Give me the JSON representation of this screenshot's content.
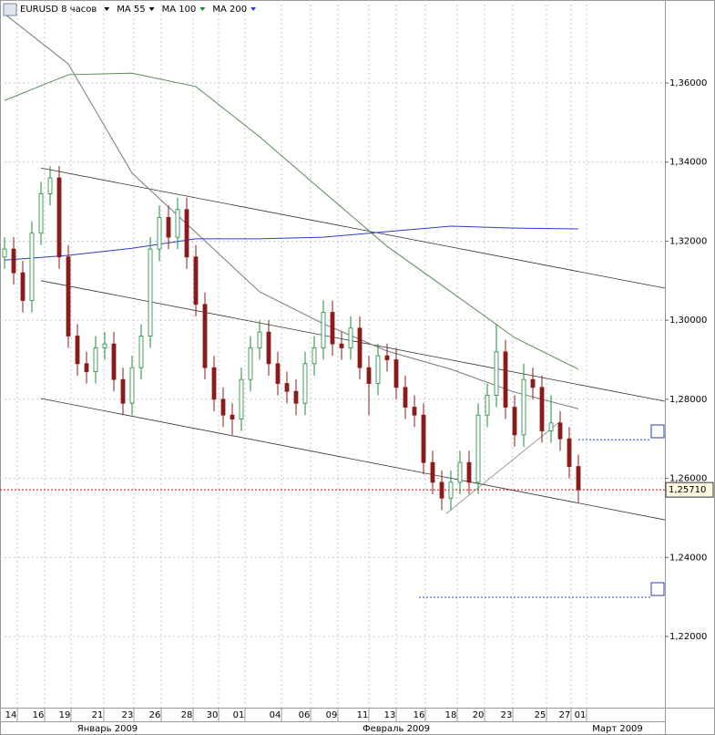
{
  "chart_data": {
    "type": "candlestick",
    "title": "EURUSD 8 часов",
    "up_color": "#1f8a3b",
    "down_color": "#8b1a1a",
    "open": [
      1.316,
      1.318,
      1.312,
      1.305,
      1.322,
      1.332,
      1.336,
      1.316,
      1.296,
      1.289,
      1.287,
      1.293,
      1.294,
      1.285,
      1.279,
      1.288,
      1.296,
      1.318,
      1.326,
      1.321,
      1.328,
      1.316,
      1.304,
      1.288,
      1.28,
      1.276,
      1.275,
      1.285,
      1.293,
      1.297,
      1.289,
      1.284,
      1.282,
      1.279,
      1.289,
      1.293,
      1.302,
      1.294,
      1.293,
      1.298,
      1.288,
      1.284,
      1.291,
      1.29,
      1.283,
      1.278,
      1.276,
      1.264,
      1.259,
      1.255,
      1.259,
      1.264,
      1.259,
      1.276,
      1.281,
      1.292,
      1.278,
      1.271,
      1.285,
      1.283,
      1.272,
      1.274,
      1.27,
      1.263
    ],
    "high": [
      1.321,
      1.321,
      1.315,
      1.325,
      1.335,
      1.339,
      1.339,
      1.319,
      1.299,
      1.292,
      1.296,
      1.297,
      1.297,
      1.288,
      1.291,
      1.299,
      1.321,
      1.329,
      1.329,
      1.331,
      1.331,
      1.319,
      1.307,
      1.291,
      1.283,
      1.279,
      1.288,
      1.296,
      1.3,
      1.3,
      1.292,
      1.287,
      1.285,
      1.292,
      1.296,
      1.305,
      1.305,
      1.297,
      1.301,
      1.301,
      1.291,
      1.294,
      1.294,
      1.293,
      1.286,
      1.281,
      1.279,
      1.267,
      1.262,
      1.262,
      1.267,
      1.267,
      1.279,
      1.284,
      1.299,
      1.295,
      1.281,
      1.289,
      1.288,
      1.286,
      1.281,
      1.277,
      1.273,
      1.266
    ],
    "low": [
      1.313,
      1.309,
      1.302,
      1.302,
      1.319,
      1.329,
      1.313,
      1.293,
      1.286,
      1.284,
      1.284,
      1.29,
      1.282,
      1.276,
      1.276,
      1.285,
      1.293,
      1.315,
      1.318,
      1.318,
      1.313,
      1.301,
      1.285,
      1.277,
      1.273,
      1.271,
      1.272,
      1.282,
      1.29,
      1.286,
      1.281,
      1.279,
      1.276,
      1.276,
      1.286,
      1.29,
      1.291,
      1.29,
      1.29,
      1.285,
      1.276,
      1.281,
      1.287,
      1.28,
      1.275,
      1.273,
      1.261,
      1.256,
      1.252,
      1.252,
      1.256,
      1.256,
      1.256,
      1.273,
      1.278,
      1.275,
      1.268,
      1.268,
      1.28,
      1.269,
      1.269,
      1.267,
      1.26,
      1.254
    ],
    "close": [
      1.318,
      1.312,
      1.305,
      1.322,
      1.332,
      1.336,
      1.316,
      1.296,
      1.289,
      1.287,
      1.293,
      1.294,
      1.285,
      1.279,
      1.288,
      1.296,
      1.318,
      1.326,
      1.321,
      1.328,
      1.316,
      1.304,
      1.288,
      1.28,
      1.276,
      1.275,
      1.285,
      1.293,
      1.297,
      1.289,
      1.284,
      1.282,
      1.279,
      1.289,
      1.293,
      1.302,
      1.294,
      1.293,
      1.298,
      1.288,
      1.284,
      1.291,
      1.29,
      1.283,
      1.278,
      1.276,
      1.264,
      1.259,
      1.255,
      1.259,
      1.264,
      1.259,
      1.276,
      1.281,
      1.292,
      1.278,
      1.271,
      1.285,
      1.283,
      1.272,
      1.274,
      1.27,
      1.263,
      1.2571
    ],
    "series": [
      {
        "name": "MA 55",
        "color": "#7a7a7a",
        "label_color": "#000000",
        "x": [
          0,
          7,
          14,
          21,
          28,
          35,
          42,
          49,
          56,
          63
        ],
        "values": [
          1.3775,
          1.3648,
          1.3372,
          1.3222,
          1.3072,
          1.2991,
          1.2922,
          1.2876,
          1.2818,
          1.2776
        ]
      },
      {
        "name": "MA 100",
        "color": "#5a8a5a",
        "label_color": "#1a8a1a",
        "x": [
          0,
          7,
          14,
          21,
          28,
          35,
          42,
          49,
          56,
          63
        ],
        "values": [
          1.3556,
          1.3621,
          1.3625,
          1.3591,
          1.3464,
          1.3325,
          1.3187,
          1.3072,
          1.2956,
          1.2876
        ]
      },
      {
        "name": "MA 200",
        "color": "#2b3fc0",
        "label_color": "#2b3fc0",
        "x": [
          0,
          7,
          14,
          21,
          28,
          35,
          42,
          49,
          56,
          63
        ],
        "values": [
          1.3152,
          1.3164,
          1.3182,
          1.3206,
          1.3206,
          1.321,
          1.3224,
          1.3238,
          1.3233,
          1.3231
        ]
      }
    ],
    "trendlines": [
      {
        "x": [
          4,
          72.5
        ],
        "y": [
          1.3385,
          1.3081
        ]
      },
      {
        "x": [
          4,
          72.5
        ],
        "y": [
          1.31,
          1.2795
        ]
      },
      {
        "x": [
          4,
          72.5
        ],
        "y": [
          1.2802,
          1.2495
        ]
      },
      {
        "x": [
          48.5,
          61
        ],
        "y": [
          1.2511,
          1.2744
        ]
      }
    ],
    "levels": [
      {
        "x": [
          63,
          72.5
        ],
        "value": 1.2698
      },
      {
        "x": [
          45.5,
          72.5
        ],
        "value": 1.2299
      }
    ],
    "last_price": {
      "value": 1.2571,
      "label": "1,25710"
    },
    "xlim": [
      -0.5,
      72.5
    ],
    "ylim": [
      1.202,
      1.381
    ],
    "grid": true,
    "yticks": [
      {
        "value": 1.22,
        "label": "1,22000"
      },
      {
        "value": 1.24,
        "label": "1,24000"
      },
      {
        "value": 1.26,
        "label": "1,26000"
      },
      {
        "value": 1.28,
        "label": "1,28000"
      },
      {
        "value": 1.3,
        "label": "1,30000"
      },
      {
        "value": 1.32,
        "label": "1,32000"
      },
      {
        "value": 1.34,
        "label": "1,34000"
      },
      {
        "value": 1.36,
        "label": "1,36000"
      }
    ],
    "xticks": [
      {
        "value": 0.7,
        "label": "14"
      },
      {
        "value": 3.7,
        "label": "16"
      },
      {
        "value": 6.6,
        "label": "19"
      },
      {
        "value": 10.2,
        "label": "21"
      },
      {
        "value": 13.5,
        "label": "23"
      },
      {
        "value": 16.5,
        "label": "26"
      },
      {
        "value": 20,
        "label": "28"
      },
      {
        "value": 22.8,
        "label": "30"
      },
      {
        "value": 25.7,
        "label": "01"
      },
      {
        "value": 29.7,
        "label": "04"
      },
      {
        "value": 32.9,
        "label": "06"
      },
      {
        "value": 35.9,
        "label": "09"
      },
      {
        "value": 39.3,
        "label": "11"
      },
      {
        "value": 42.3,
        "label": "13"
      },
      {
        "value": 45.5,
        "label": "16"
      },
      {
        "value": 49,
        "label": "18"
      },
      {
        "value": 52,
        "label": "20"
      },
      {
        "value": 55.1,
        "label": "23"
      },
      {
        "value": 58.8,
        "label": "25"
      },
      {
        "value": 61.5,
        "label": "27"
      },
      {
        "value": 63.2,
        "label": "01"
      }
    ],
    "months": [
      {
        "value": 11.3,
        "label": "Январь 2009"
      },
      {
        "value": 43,
        "label": "Февраль 2009"
      },
      {
        "value": 67.3,
        "label": "Март 2009"
      }
    ]
  }
}
